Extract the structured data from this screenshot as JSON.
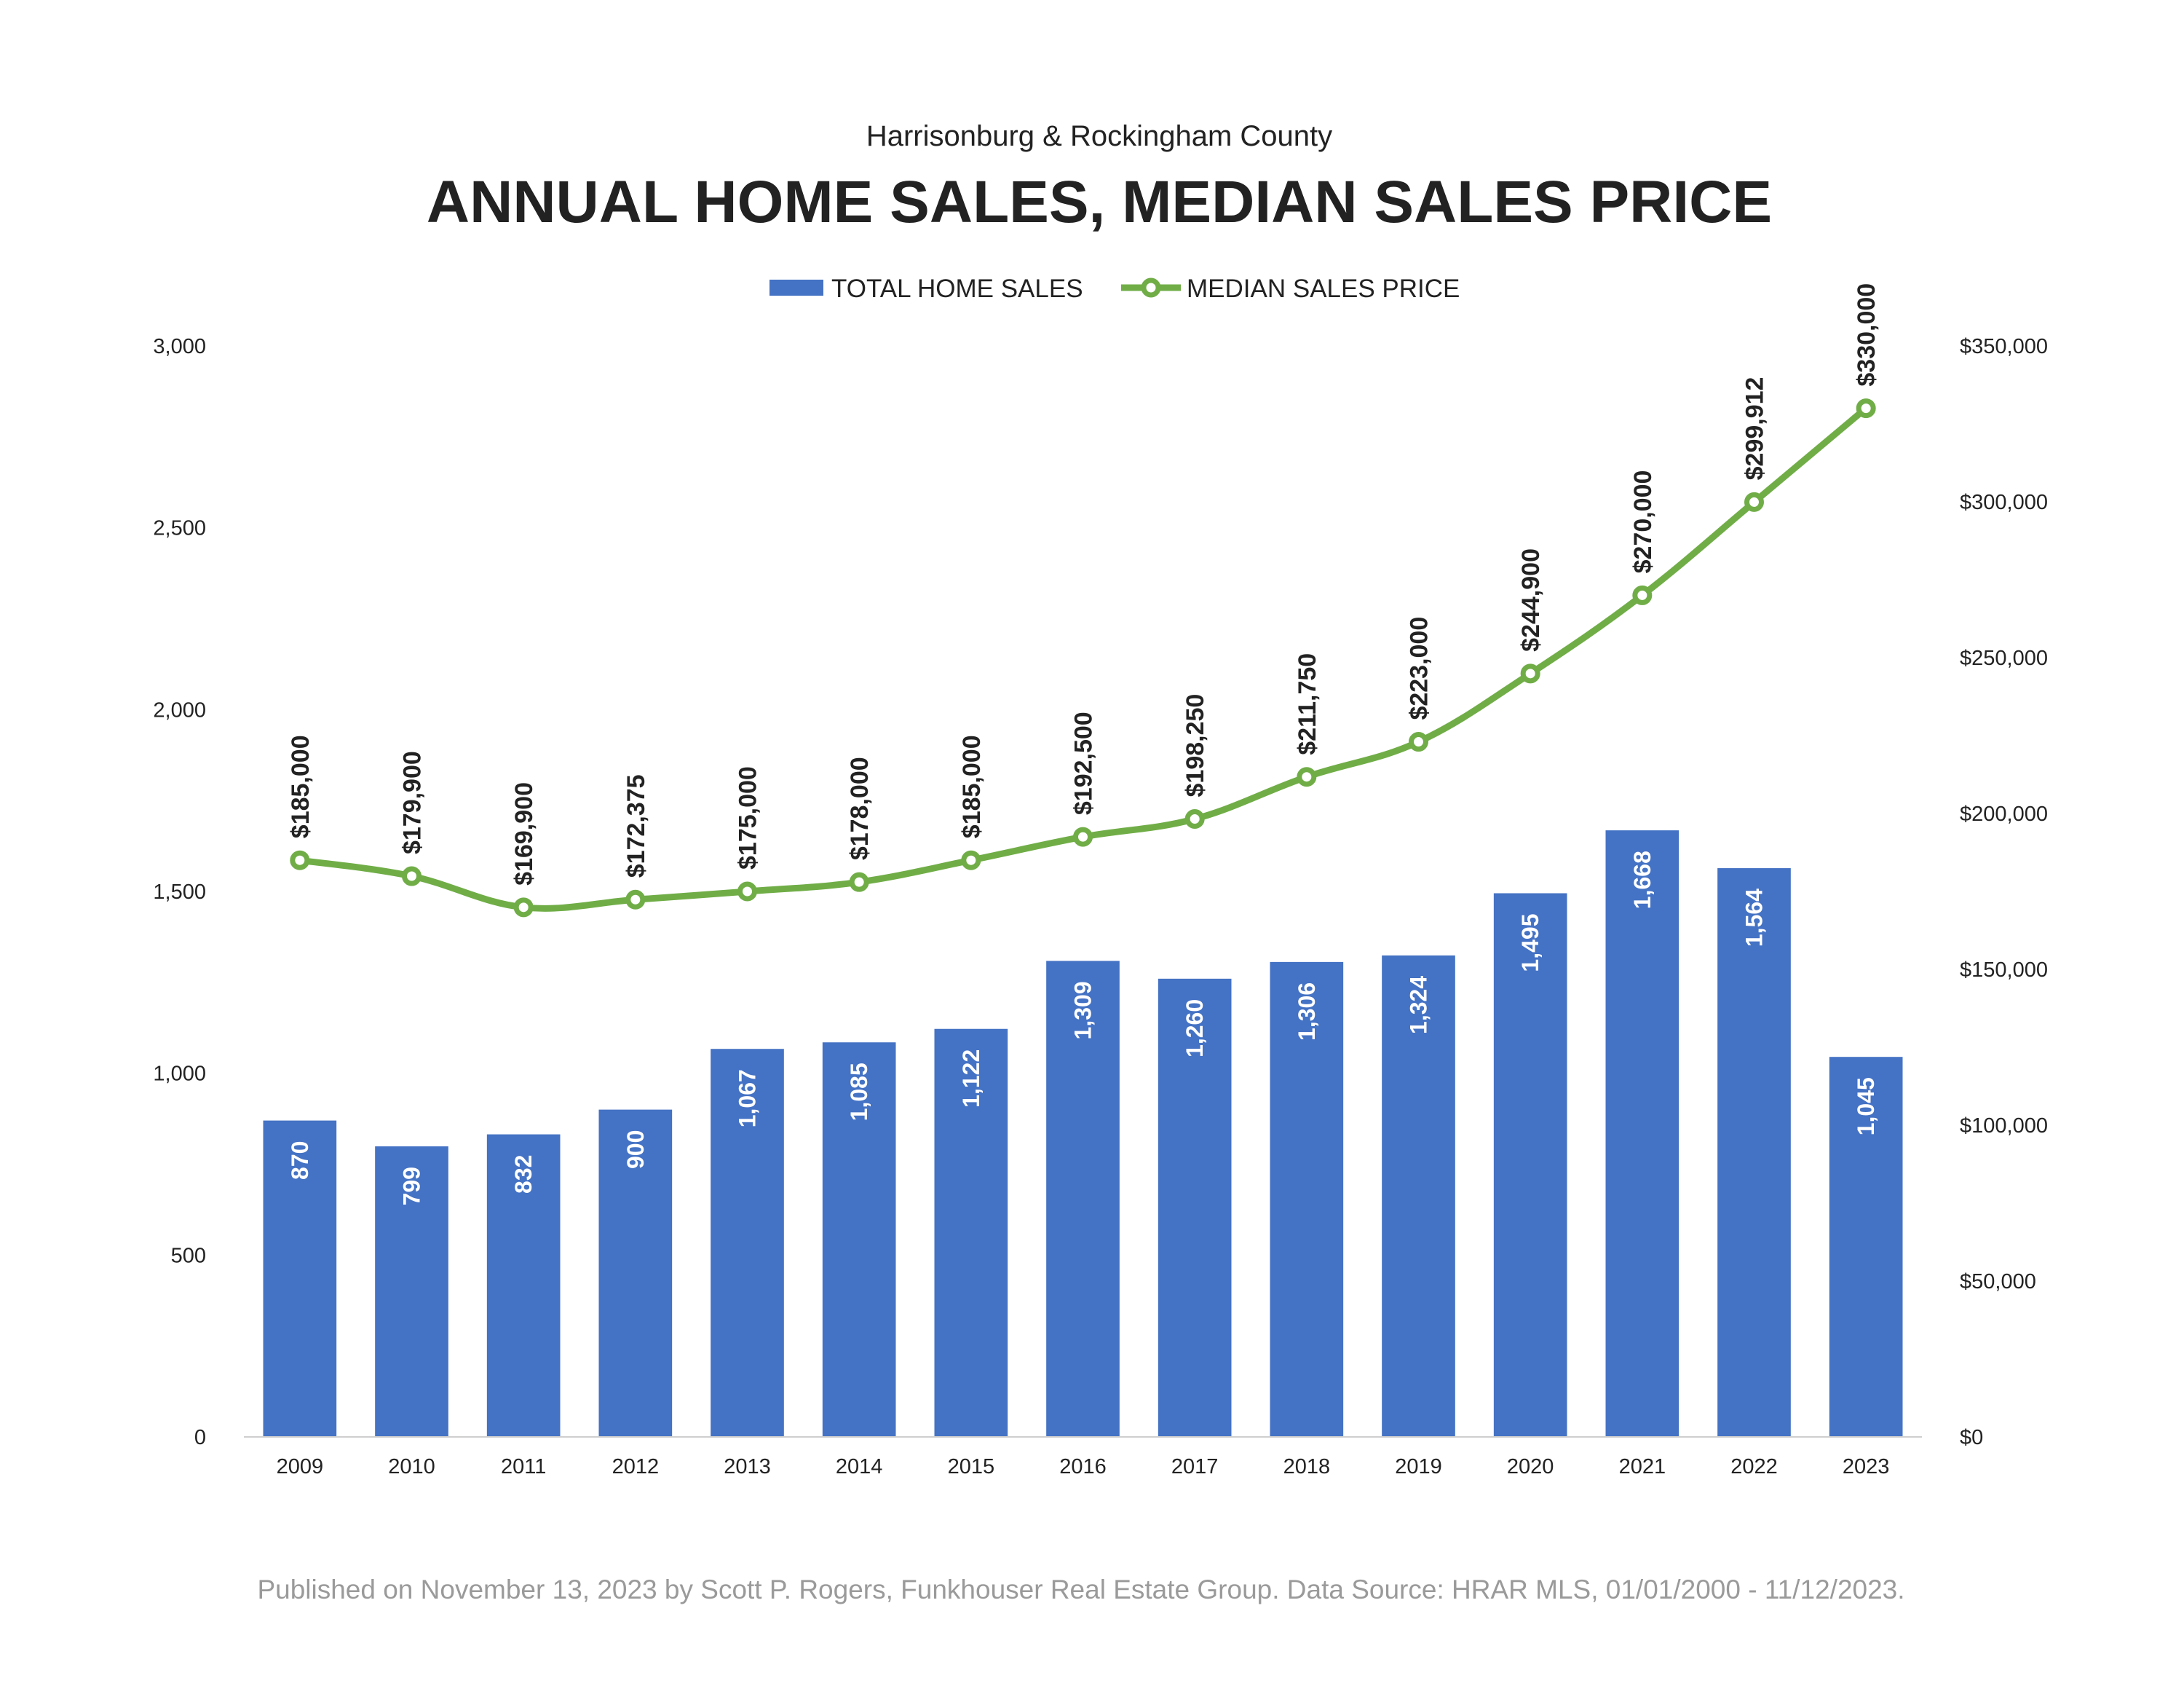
{
  "chart_data": {
    "type": "bar",
    "subtitle": "Harrisonburg & Rockingham County",
    "title": "ANNUAL HOME SALES, MEDIAN SALES PRICE",
    "categories": [
      "2009",
      "2010",
      "2011",
      "2012",
      "2013",
      "2014",
      "2015",
      "2016",
      "2017",
      "2018",
      "2019",
      "2020",
      "2021",
      "2022",
      "2023"
    ],
    "series": [
      {
        "name": "TOTAL HOME SALES",
        "type": "bar",
        "axis": "left",
        "color": "#4472C4",
        "values": [
          870,
          799,
          832,
          900,
          1067,
          1085,
          1122,
          1309,
          1260,
          1306,
          1324,
          1495,
          1668,
          1564,
          1045
        ],
        "labels": [
          "870",
          "799",
          "832",
          "900",
          "1,067",
          "1,085",
          "1,122",
          "1,309",
          "1,260",
          "1,306",
          "1,324",
          "1,495",
          "1,668",
          "1,564",
          "1,045"
        ]
      },
      {
        "name": "MEDIAN SALES PRICE",
        "type": "line",
        "axis": "right",
        "color": "#70AD47",
        "values": [
          185000,
          179900,
          169900,
          172375,
          175000,
          178000,
          185000,
          192500,
          198250,
          211750,
          223000,
          244900,
          270000,
          299912,
          330000
        ],
        "labels": [
          "$185,000",
          "$179,900",
          "$169,900",
          "$172,375",
          "$175,000",
          "$178,000",
          "$185,000",
          "$192,500",
          "$198,250",
          "$211,750",
          "$223,000",
          "$244,900",
          "$270,000",
          "$299,912",
          "$330,000"
        ]
      }
    ],
    "y_left": {
      "min": 0,
      "max": 3000,
      "ticks": [
        "0",
        "500",
        "1,000",
        "1,500",
        "2,000",
        "2,500",
        "3,000"
      ]
    },
    "y_right": {
      "min": 0,
      "max": 350000,
      "ticks": [
        "$0",
        "$50,000",
        "$100,000",
        "$150,000",
        "$200,000",
        "$250,000",
        "$300,000",
        "$350,000"
      ]
    },
    "legend_position": "top",
    "grid": false
  },
  "footer": "Published on November 13, 2023 by Scott P. Rogers, Funkhouser Real Estate Group. Data Source: HRAR MLS, 01/01/2000 - 11/12/2023."
}
